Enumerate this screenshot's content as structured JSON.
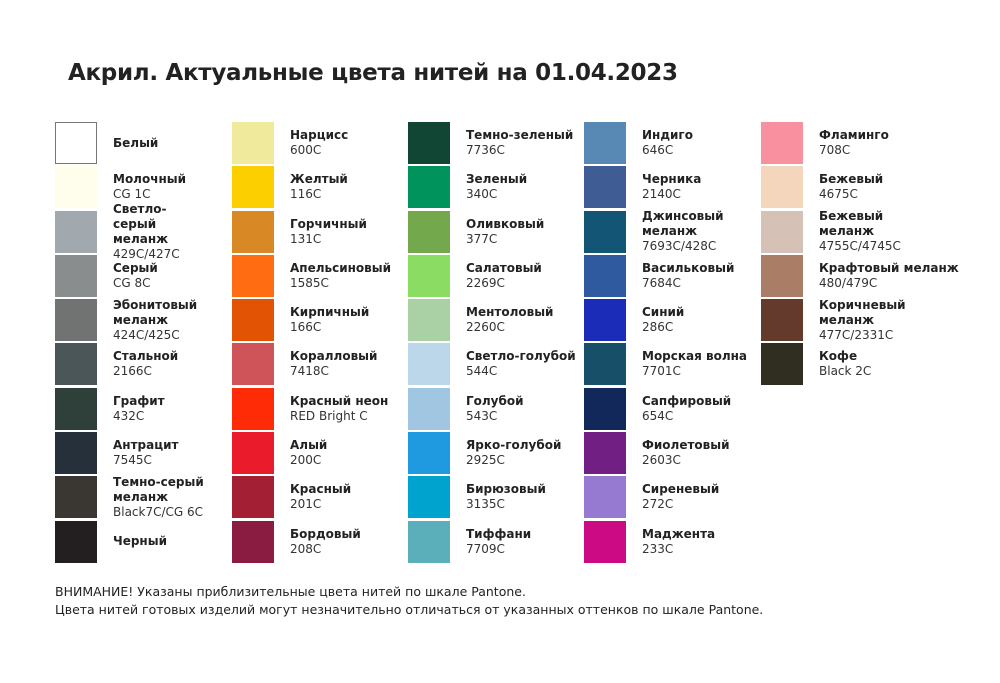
{
  "title": "Акрил. Актуальные цвета нитей на 01.04.2023",
  "columns": [
    [
      {
        "name": "Белый",
        "code": "",
        "color": "#ffffff"
      },
      {
        "name": "Молочный",
        "code": "CG 1C",
        "color": "#fffdec"
      },
      {
        "name": "Светло-серый меланж",
        "code": "429C/427C",
        "color": "#a2a9ae"
      },
      {
        "name": "Серый",
        "code": "CG 8C",
        "color": "#8a8d8d"
      },
      {
        "name": "Эбонитовый меланж",
        "code": "424C/425C",
        "color": "#707372"
      },
      {
        "name": "Стальной",
        "code": "2166C",
        "color": "#4b5659"
      },
      {
        "name": "Графит",
        "code": "432C",
        "color": "#2e4039"
      },
      {
        "name": "Антрацит",
        "code": "7545C",
        "color": "#26303a"
      },
      {
        "name": "Темно-серый меланж",
        "code": "Black7C/CG 6C",
        "color": "#3a3733"
      },
      {
        "name": "Черный",
        "code": "",
        "color": "#231f20"
      }
    ],
    [
      {
        "name": "Нарцисс",
        "code": "600C",
        "color": "#f0ea9c"
      },
      {
        "name": "Желтый",
        "code": "116C",
        "color": "#fbcf00"
      },
      {
        "name": "Горчичный",
        "code": "131C",
        "color": "#d98826"
      },
      {
        "name": "Апельсиновый",
        "code": "1585C",
        "color": "#ff6c12"
      },
      {
        "name": "Кирпичный",
        "code": "166C",
        "color": "#e35304"
      },
      {
        "name": "Коралловый",
        "code": "7418C",
        "color": "#ce545a"
      },
      {
        "name": "Красный неон",
        "code": "RED Bright C",
        "color": "#ff2b06"
      },
      {
        "name": "Алый",
        "code": "200C",
        "color": "#ea1b2b"
      },
      {
        "name": "Красный",
        "code": "201C",
        "color": "#a31f34"
      },
      {
        "name": "Бордовый",
        "code": "208C",
        "color": "#8a1c41"
      }
    ],
    [
      {
        "name": "Темно-зеленый",
        "code": "7736C",
        "color": "#124634"
      },
      {
        "name": "Зеленый",
        "code": "340C",
        "color": "#00945c"
      },
      {
        "name": "Оливковый",
        "code": "377C",
        "color": "#74a84c"
      },
      {
        "name": "Салатовый",
        "code": "2269C",
        "color": "#8adc62"
      },
      {
        "name": "Ментоловый",
        "code": "2260C",
        "color": "#aad0a6"
      },
      {
        "name": "Светло-голубой",
        "code": "544C",
        "color": "#bcd6ea"
      },
      {
        "name": "Голубой",
        "code": "543C",
        "color": "#a1c6e2"
      },
      {
        "name": "Ярко-голубой",
        "code": "2925C",
        "color": "#1f9ae0"
      },
      {
        "name": "Бирюзовый",
        "code": "3135C",
        "color": "#00a3cd"
      },
      {
        "name": "Тиффани",
        "code": "7709C",
        "color": "#5aafbb"
      }
    ],
    [
      {
        "name": "Индиго",
        "code": "646C",
        "color": "#5889b5"
      },
      {
        "name": "Черника",
        "code": "2140C",
        "color": "#405c94"
      },
      {
        "name": "Джинсовый меланж",
        "code": "7693C/428C",
        "color": "#125575"
      },
      {
        "name": "Васильковый",
        "code": "7684C",
        "color": "#2f5a9f"
      },
      {
        "name": "Синий",
        "code": "286C",
        "color": "#1b2db8"
      },
      {
        "name": "Морская волна",
        "code": "7701C",
        "color": "#174e68"
      },
      {
        "name": "Сапфировый",
        "code": "654C",
        "color": "#12285a"
      },
      {
        "name": "Фиолетовый",
        "code": "2603C",
        "color": "#711f82"
      },
      {
        "name": "Сиреневый",
        "code": "272C",
        "color": "#967ad1"
      },
      {
        "name": "Маджента",
        "code": "233C",
        "color": "#cc0a83"
      }
    ],
    [
      {
        "name": "Фламинго",
        "code": "708C",
        "color": "#f890a0"
      },
      {
        "name": "Бежевый",
        "code": "4675C",
        "color": "#f4d6bc"
      },
      {
        "name": "Бежевый меланж",
        "code": "4755C/4745C",
        "color": "#d6c1b6"
      },
      {
        "name": "Крафтовый меланж",
        "code": "480/479C",
        "color": "#a97d66"
      },
      {
        "name": "Коричневый меланж",
        "code": "477C/2331C",
        "color": "#643a2c"
      },
      {
        "name": "Кофе",
        "code": "Black 2C",
        "color": "#302d21"
      }
    ]
  ],
  "notes": [
    "ВНИМАНИЕ! Указаны приблизительные цвета нитей по шкале Pantone.",
    "Цвета нитей готовых изделий могут незначительно отличаться от указанных оттенков по шкале Pantone."
  ]
}
